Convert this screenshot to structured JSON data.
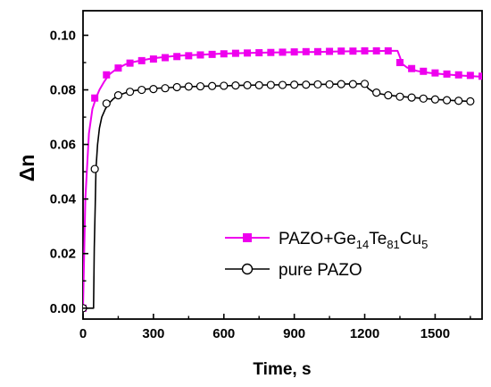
{
  "chart_data": {
    "type": "line",
    "xlabel": "Time, s",
    "ylabel": "Δn",
    "xlim": [
      0,
      1700
    ],
    "ylim": [
      -0.004,
      0.109
    ],
    "x_ticks": [
      0,
      300,
      600,
      900,
      1200,
      1500
    ],
    "y_ticks": [
      0.0,
      0.02,
      0.04,
      0.06,
      0.08,
      0.1
    ],
    "y_tick_labels": [
      "0.00",
      "0.02",
      "0.04",
      "0.06",
      "0.08",
      "0.10"
    ],
    "legend_position": "center-right",
    "series": [
      {
        "name": "PAZO+Ge14Te81Cu5",
        "legend_parts": [
          {
            "text": "PAZO+Ge",
            "sub": false
          },
          {
            "text": "14",
            "sub": true
          },
          {
            "text": "Te",
            "sub": false
          },
          {
            "text": "81",
            "sub": true
          },
          {
            "text": "Cu",
            "sub": false
          },
          {
            "text": "5",
            "sub": true
          }
        ],
        "color": "#ee00ee",
        "marker": "square-filled",
        "curve_x": [
          0,
          10,
          25,
          40,
          55,
          70,
          90,
          110,
          140,
          180,
          220,
          260,
          300,
          400,
          500,
          600,
          700,
          800,
          900,
          1000,
          1100,
          1200,
          1300,
          1340,
          1350,
          1360,
          1380,
          1420,
          1450,
          1500,
          1600,
          1700
        ],
        "curve_y": [
          0.0,
          0.04,
          0.064,
          0.073,
          0.077,
          0.08,
          0.083,
          0.0855,
          0.0875,
          0.0893,
          0.0903,
          0.091,
          0.0916,
          0.0925,
          0.0929,
          0.0933,
          0.0935,
          0.0937,
          0.0938,
          0.0939,
          0.0941,
          0.0942,
          0.0943,
          0.0943,
          0.092,
          0.0895,
          0.0882,
          0.087,
          0.0865,
          0.086,
          0.0853,
          0.0848
        ],
        "marker_x": [
          0,
          50,
          100,
          150,
          200,
          250,
          300,
          350,
          400,
          450,
          500,
          550,
          600,
          650,
          700,
          750,
          800,
          850,
          900,
          950,
          1000,
          1050,
          1100,
          1150,
          1200,
          1250,
          1300,
          1350,
          1400,
          1450,
          1500,
          1550,
          1600,
          1650,
          1700
        ],
        "marker_y": [
          0.0,
          0.077,
          0.0855,
          0.088,
          0.0898,
          0.0907,
          0.0913,
          0.0918,
          0.0922,
          0.0925,
          0.0928,
          0.093,
          0.0932,
          0.0934,
          0.0935,
          0.0936,
          0.0937,
          0.0938,
          0.0939,
          0.094,
          0.094,
          0.0941,
          0.0942,
          0.0942,
          0.0943,
          0.0943,
          0.0943,
          0.09,
          0.0878,
          0.0868,
          0.0862,
          0.0858,
          0.0855,
          0.0853,
          0.085
        ]
      },
      {
        "name": "pure PAZO",
        "legend_parts": [
          {
            "text": "pure PAZO",
            "sub": false
          }
        ],
        "color": "#000000",
        "marker": "circle-open",
        "curve_x": [
          0,
          25,
          45,
          48,
          52,
          55,
          62,
          70,
          80,
          95,
          110,
          130,
          160,
          200,
          260,
          300,
          400,
          500,
          600,
          700,
          800,
          900,
          1000,
          1100,
          1180,
          1200,
          1215,
          1240,
          1300,
          1400,
          1500,
          1600,
          1650
        ],
        "curve_y": [
          0.0,
          0.0,
          0.0,
          0.022,
          0.038,
          0.051,
          0.06,
          0.066,
          0.07,
          0.073,
          0.075,
          0.0768,
          0.0783,
          0.0795,
          0.0802,
          0.0805,
          0.081,
          0.0813,
          0.0815,
          0.0817,
          0.0818,
          0.0819,
          0.082,
          0.0821,
          0.0822,
          0.0822,
          0.0805,
          0.079,
          0.078,
          0.0772,
          0.0765,
          0.076,
          0.0758
        ],
        "marker_x": [
          0,
          50,
          100,
          150,
          200,
          250,
          300,
          350,
          400,
          450,
          500,
          550,
          600,
          650,
          700,
          750,
          800,
          850,
          900,
          950,
          1000,
          1050,
          1100,
          1150,
          1200,
          1250,
          1300,
          1350,
          1400,
          1450,
          1500,
          1550,
          1600,
          1650
        ],
        "marker_y": [
          0.0,
          0.051,
          0.075,
          0.078,
          0.0793,
          0.08,
          0.0803,
          0.0806,
          0.081,
          0.0812,
          0.0813,
          0.0814,
          0.0815,
          0.0816,
          0.0817,
          0.0817,
          0.0818,
          0.0818,
          0.0819,
          0.0819,
          0.082,
          0.082,
          0.0821,
          0.0821,
          0.0822,
          0.079,
          0.078,
          0.0775,
          0.0772,
          0.0768,
          0.0765,
          0.0762,
          0.076,
          0.0758
        ]
      }
    ]
  }
}
